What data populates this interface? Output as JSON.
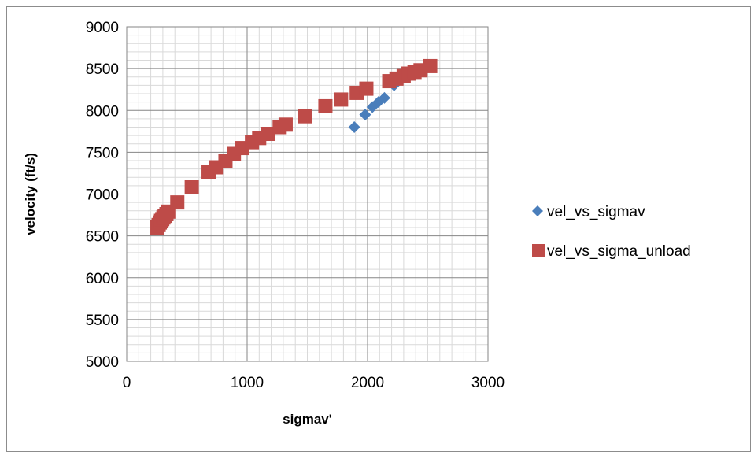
{
  "chart_data": {
    "type": "scatter",
    "title": "",
    "xlabel": "sigmav'",
    "ylabel": "velocity (ft/s)",
    "xlim": [
      0,
      3000
    ],
    "ylim": [
      5000,
      9000
    ],
    "x_ticks": [
      "0",
      "1000",
      "2000",
      "3000"
    ],
    "y_ticks": [
      "5000",
      "5500",
      "6000",
      "6500",
      "7000",
      "7500",
      "8000",
      "8500",
      "9000"
    ],
    "grid": "major and minor",
    "legend_position": "right",
    "series": [
      {
        "name": "vel_vs_sigmav",
        "marker": "diamond",
        "color": "#4a7ebb",
        "points": [
          [
            1890,
            7800
          ],
          [
            1980,
            7950
          ],
          [
            2040,
            8040
          ],
          [
            2090,
            8100
          ],
          [
            2140,
            8150
          ],
          [
            2220,
            8300
          ]
        ]
      },
      {
        "name": "vel_vs_sigma_unload",
        "marker": "square",
        "color": "#be4b48",
        "points": [
          [
            255,
            6600
          ],
          [
            265,
            6630
          ],
          [
            275,
            6660
          ],
          [
            285,
            6680
          ],
          [
            295,
            6700
          ],
          [
            305,
            6720
          ],
          [
            315,
            6740
          ],
          [
            330,
            6760
          ],
          [
            345,
            6790
          ],
          [
            420,
            6900
          ],
          [
            540,
            7080
          ],
          [
            680,
            7260
          ],
          [
            740,
            7320
          ],
          [
            820,
            7400
          ],
          [
            890,
            7480
          ],
          [
            960,
            7550
          ],
          [
            1040,
            7620
          ],
          [
            1100,
            7670
          ],
          [
            1170,
            7720
          ],
          [
            1270,
            7800
          ],
          [
            1320,
            7830
          ],
          [
            1480,
            7930
          ],
          [
            1650,
            8050
          ],
          [
            1780,
            8130
          ],
          [
            1910,
            8210
          ],
          [
            1990,
            8260
          ],
          [
            2180,
            8350
          ],
          [
            2240,
            8380
          ],
          [
            2300,
            8410
          ],
          [
            2340,
            8440
          ],
          [
            2390,
            8460
          ],
          [
            2440,
            8480
          ],
          [
            2520,
            8530
          ]
        ]
      }
    ]
  }
}
